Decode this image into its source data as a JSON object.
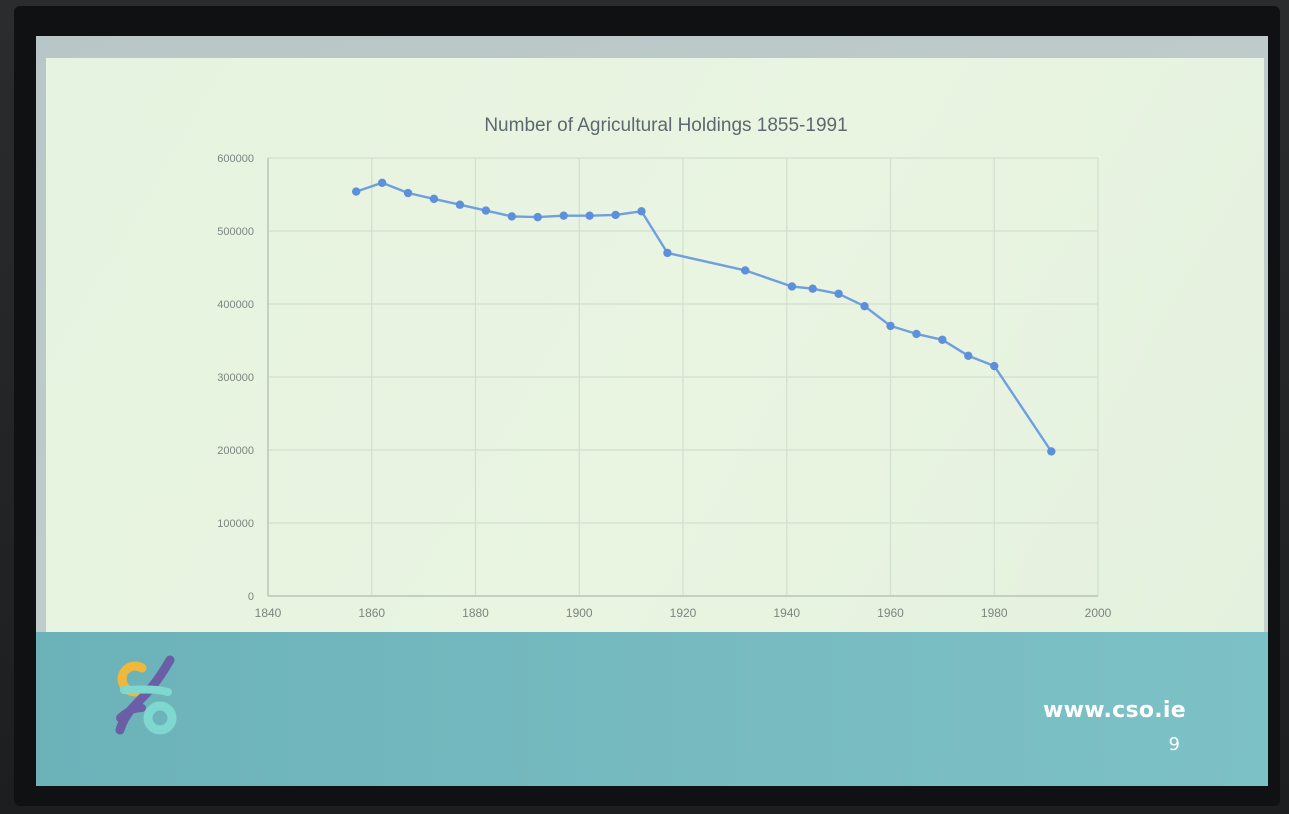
{
  "slide": {
    "website": "www.cso.ie",
    "page_number": "9"
  },
  "logo": {
    "icon": "cso-logo-icon",
    "colors": [
      "#f0b83a",
      "#6a5ea6",
      "#7fd8cf"
    ]
  },
  "colors": {
    "series_line": "#6f9fe0",
    "series_marker": "#5e90da",
    "footer_band": "#74b8be",
    "slide_background": "#e7f3df"
  },
  "chart_data": {
    "type": "scatter",
    "title": "Number of Agricultural Holdings 1855-1991",
    "xlabel": "",
    "ylabel": "",
    "xlim": [
      1840,
      2000
    ],
    "ylim": [
      0,
      600000
    ],
    "x_ticks": [
      "1840",
      "1860",
      "1880",
      "1900",
      "1920",
      "1940",
      "1960",
      "1980",
      "2000"
    ],
    "y_ticks": [
      "0",
      "100000",
      "200000",
      "300000",
      "400000",
      "500000",
      "600000"
    ],
    "grid": true,
    "legend": "none",
    "series": [
      {
        "markers": true,
        "lines": true,
        "x": [
          1857,
          1862,
          1867,
          1872,
          1877,
          1882,
          1887,
          1892,
          1897,
          1902,
          1907,
          1912,
          1917,
          1932,
          1941,
          1945,
          1950,
          1955,
          1960,
          1965,
          1970,
          1975,
          1980,
          1991
        ],
        "y": [
          554000,
          566000,
          552000,
          544000,
          536000,
          528000,
          520000,
          519000,
          521000,
          521000,
          522000,
          527000,
          470000,
          446000,
          424000,
          421000,
          414000,
          397000,
          370000,
          359000,
          351000,
          329000,
          315000,
          198000
        ]
      }
    ]
  }
}
